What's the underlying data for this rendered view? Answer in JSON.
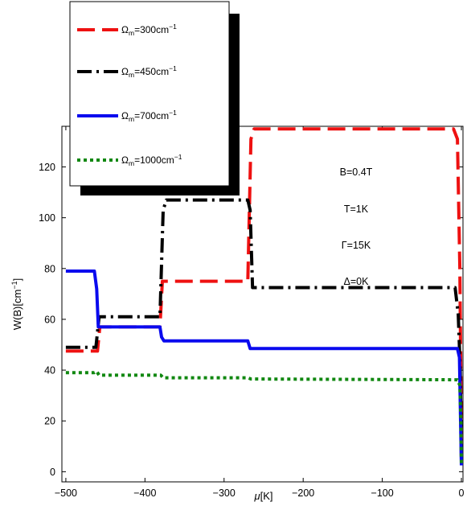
{
  "chart_data": {
    "type": "line",
    "xlabel_symbol": "μ",
    "xlabel_unit": "[K]",
    "ylabel_main": "W(B)[cm",
    "ylabel_exp": "−1",
    "ylabel_close": "]",
    "xlim": [
      -505,
      2
    ],
    "ylim": [
      -4,
      136
    ],
    "xticks": [
      -500,
      -400,
      -300,
      -200,
      -100,
      0
    ],
    "xtick_labels": [
      "−500",
      "−400",
      "−300",
      "−200",
      "−100",
      "0"
    ],
    "yticks": [
      0,
      20,
      40,
      60,
      80,
      100,
      120
    ],
    "ytick_labels": [
      "0",
      "20",
      "40",
      "60",
      "80",
      "100",
      "120"
    ],
    "annotations": [
      "B=0.4T",
      "T=1K",
      "Γ=15K",
      "Δ=0K"
    ],
    "legend_placement": "top-left, above plot",
    "series": [
      {
        "name_symbol": "Ω",
        "name_sub": "m",
        "name_value": "=300cm",
        "name_exp": "−1",
        "color": "#ee1111",
        "dash": "22,9",
        "points": [
          [
            -500,
            47.5
          ],
          [
            -460,
            47.5
          ],
          [
            -457,
            57
          ],
          [
            -381,
            57
          ],
          [
            -378,
            75
          ],
          [
            -270,
            75
          ],
          [
            -266,
            131
          ],
          [
            -262,
            135
          ],
          [
            -10,
            135
          ],
          [
            -5,
            131
          ],
          [
            -2,
            80
          ],
          [
            -0.5,
            30
          ],
          [
            0,
            5
          ]
        ]
      },
      {
        "name_symbol": "Ω",
        "name_sub": "m",
        "name_value": "=450cm",
        "name_exp": "−1",
        "color": "#000000",
        "dash": "18,6,3,6",
        "points": [
          [
            -500,
            49
          ],
          [
            -462,
            49
          ],
          [
            -458,
            61
          ],
          [
            -381,
            61
          ],
          [
            -377,
            103
          ],
          [
            -373,
            107
          ],
          [
            -270,
            107
          ],
          [
            -267,
            103
          ],
          [
            -264,
            72.5
          ],
          [
            -8,
            72.5
          ],
          [
            -4,
            62
          ],
          [
            -1.5,
            40
          ],
          [
            0,
            5
          ]
        ]
      },
      {
        "name_symbol": "Ω",
        "name_sub": "m",
        "name_value": "=700cm",
        "name_exp": "−1",
        "color": "#0a0aee",
        "dash": "",
        "points": [
          [
            -500,
            79
          ],
          [
            -464,
            79
          ],
          [
            -461,
            72
          ],
          [
            -459,
            57
          ],
          [
            -381,
            57
          ],
          [
            -379,
            53
          ],
          [
            -376,
            51.5
          ],
          [
            -270,
            51.5
          ],
          [
            -267,
            48.5
          ],
          [
            -264,
            48.5
          ],
          [
            -5,
            48.5
          ],
          [
            -2.5,
            45
          ],
          [
            -1,
            20
          ],
          [
            0,
            2.5
          ]
        ]
      },
      {
        "name_symbol": "Ω",
        "name_sub": "m",
        "name_value": "=1000cm",
        "name_exp": "−1",
        "color": "#118811",
        "dash": "4,4",
        "points": [
          [
            -500,
            39
          ],
          [
            -464,
            39
          ],
          [
            -461,
            39.5
          ],
          [
            -458,
            38
          ],
          [
            -380,
            38
          ],
          [
            -377,
            37
          ],
          [
            -270,
            37
          ],
          [
            -266,
            36.5
          ],
          [
            -5,
            36.2
          ],
          [
            -2,
            34
          ],
          [
            -0.5,
            20
          ],
          [
            0,
            3
          ]
        ]
      }
    ]
  }
}
